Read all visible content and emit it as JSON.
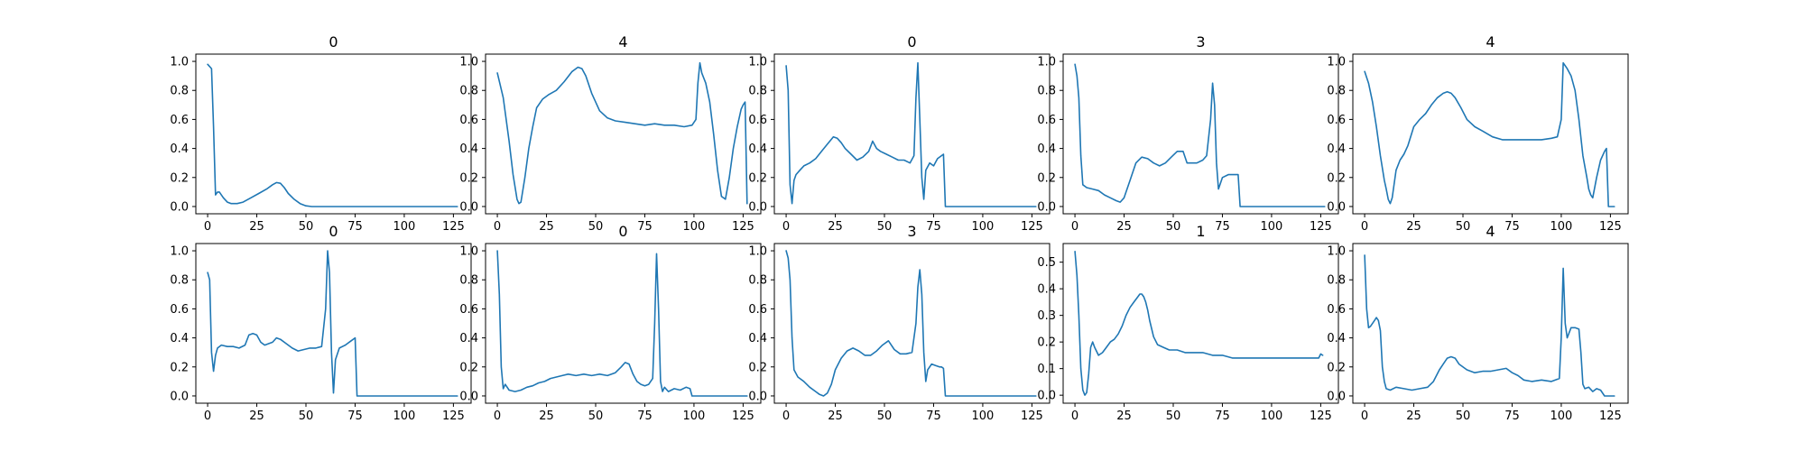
{
  "figure": {
    "line_color": "#1f77b4",
    "background": "#ffffff"
  },
  "chart_data": [
    {
      "type": "line",
      "title": "0",
      "xlim": [
        -6,
        134
      ],
      "ylim": [
        -0.05,
        1.05
      ],
      "xticks": [
        0,
        25,
        50,
        75,
        100,
        125
      ],
      "yticks": [
        0.0,
        0.2,
        0.4,
        0.6,
        0.8,
        1.0
      ],
      "ytick_labels": [
        "0.0",
        "0.2",
        "0.4",
        "0.6",
        "0.8",
        "1.0"
      ],
      "x": [
        0,
        2,
        3,
        4,
        5,
        6,
        8,
        10,
        12,
        15,
        18,
        22,
        26,
        30,
        33,
        35,
        37,
        39,
        41,
        44,
        47,
        50,
        53,
        127
      ],
      "y": [
        0.98,
        0.95,
        0.55,
        0.08,
        0.1,
        0.1,
        0.06,
        0.03,
        0.02,
        0.02,
        0.03,
        0.06,
        0.09,
        0.12,
        0.15,
        0.165,
        0.16,
        0.13,
        0.09,
        0.05,
        0.02,
        0.005,
        0.0,
        0.0
      ]
    },
    {
      "type": "line",
      "title": "4",
      "xlim": [
        -6,
        134
      ],
      "ylim": [
        -0.05,
        1.05
      ],
      "xticks": [
        0,
        25,
        50,
        75,
        100,
        125
      ],
      "yticks": [
        0.0,
        0.2,
        0.4,
        0.6,
        0.8,
        1.0
      ],
      "ytick_labels": [
        "0.0",
        "0.2",
        "0.4",
        "0.6",
        "0.8",
        "1.0"
      ],
      "x": [
        0,
        3,
        6,
        8,
        10,
        11,
        12,
        14,
        16,
        18,
        20,
        23,
        26,
        30,
        34,
        38,
        41,
        43,
        45,
        48,
        52,
        56,
        60,
        65,
        70,
        75,
        80,
        85,
        90,
        95,
        99,
        101,
        102,
        103,
        104,
        106,
        108,
        110,
        112,
        114,
        116,
        118,
        120,
        122,
        124,
        125,
        126,
        127
      ],
      "y": [
        0.92,
        0.75,
        0.45,
        0.22,
        0.05,
        0.02,
        0.03,
        0.2,
        0.4,
        0.55,
        0.68,
        0.74,
        0.77,
        0.8,
        0.86,
        0.93,
        0.96,
        0.95,
        0.9,
        0.78,
        0.66,
        0.61,
        0.59,
        0.58,
        0.57,
        0.56,
        0.57,
        0.56,
        0.56,
        0.55,
        0.56,
        0.6,
        0.85,
        0.99,
        0.92,
        0.85,
        0.72,
        0.5,
        0.25,
        0.07,
        0.05,
        0.2,
        0.4,
        0.55,
        0.67,
        0.7,
        0.72,
        0.02
      ]
    },
    {
      "type": "line",
      "title": "0",
      "xlim": [
        -6,
        134
      ],
      "ylim": [
        -0.05,
        1.05
      ],
      "xticks": [
        0,
        25,
        50,
        75,
        100,
        125
      ],
      "yticks": [
        0.0,
        0.2,
        0.4,
        0.6,
        0.8,
        1.0
      ],
      "ytick_labels": [
        "0.0",
        "0.2",
        "0.4",
        "0.6",
        "0.8",
        "1.0"
      ],
      "x": [
        0,
        1,
        2,
        3,
        4,
        5,
        7,
        9,
        12,
        15,
        18,
        21,
        24,
        26,
        28,
        30,
        33,
        36,
        39,
        42,
        44,
        46,
        48,
        51,
        54,
        57,
        60,
        63,
        65,
        66,
        67,
        68,
        69,
        70,
        71,
        73,
        75,
        77,
        79,
        80,
        81,
        127
      ],
      "y": [
        0.97,
        0.8,
        0.15,
        0.02,
        0.18,
        0.22,
        0.25,
        0.28,
        0.3,
        0.33,
        0.38,
        0.43,
        0.48,
        0.47,
        0.44,
        0.4,
        0.36,
        0.32,
        0.34,
        0.38,
        0.45,
        0.4,
        0.38,
        0.36,
        0.34,
        0.32,
        0.32,
        0.3,
        0.35,
        0.75,
        0.99,
        0.6,
        0.2,
        0.05,
        0.25,
        0.3,
        0.28,
        0.33,
        0.35,
        0.36,
        0.0,
        0.0
      ]
    },
    {
      "type": "line",
      "title": "3",
      "xlim": [
        -6,
        134
      ],
      "ylim": [
        -0.05,
        1.05
      ],
      "xticks": [
        0,
        25,
        50,
        75,
        100,
        125
      ],
      "yticks": [
        0.0,
        0.2,
        0.4,
        0.6,
        0.8,
        1.0
      ],
      "ytick_labels": [
        "0.0",
        "0.2",
        "0.4",
        "0.6",
        "0.8",
        "1.0"
      ],
      "x": [
        0,
        1,
        2,
        3,
        4,
        6,
        9,
        12,
        15,
        18,
        21,
        23,
        25,
        28,
        31,
        34,
        37,
        40,
        43,
        46,
        49,
        52,
        55,
        57,
        59,
        62,
        65,
        67,
        69,
        70,
        71,
        72,
        73,
        75,
        78,
        81,
        82,
        83,
        84,
        127
      ],
      "y": [
        0.98,
        0.9,
        0.75,
        0.35,
        0.15,
        0.13,
        0.12,
        0.11,
        0.08,
        0.06,
        0.04,
        0.03,
        0.06,
        0.18,
        0.3,
        0.34,
        0.33,
        0.3,
        0.28,
        0.3,
        0.34,
        0.38,
        0.38,
        0.3,
        0.3,
        0.3,
        0.32,
        0.35,
        0.6,
        0.85,
        0.7,
        0.3,
        0.12,
        0.2,
        0.22,
        0.22,
        0.22,
        0.22,
        0.0,
        0.0
      ]
    },
    {
      "type": "line",
      "title": "4",
      "xlim": [
        -6,
        134
      ],
      "ylim": [
        -0.05,
        1.05
      ],
      "xticks": [
        0,
        25,
        50,
        75,
        100,
        125
      ],
      "yticks": [
        0.0,
        0.2,
        0.4,
        0.6,
        0.8,
        1.0
      ],
      "ytick_labels": [
        "0.0",
        "0.2",
        "0.4",
        "0.6",
        "0.8",
        "1.0"
      ],
      "x": [
        0,
        2,
        4,
        6,
        8,
        10,
        11,
        12,
        13,
        14,
        16,
        18,
        20,
        22,
        25,
        28,
        31,
        34,
        37,
        40,
        42,
        44,
        46,
        49,
        52,
        56,
        60,
        65,
        70,
        75,
        80,
        85,
        90,
        95,
        98,
        100,
        101,
        103,
        105,
        107,
        109,
        111,
        113,
        114,
        115,
        116,
        118,
        120,
        122,
        123,
        124,
        127
      ],
      "y": [
        0.93,
        0.85,
        0.72,
        0.55,
        0.35,
        0.18,
        0.12,
        0.05,
        0.02,
        0.06,
        0.25,
        0.32,
        0.36,
        0.42,
        0.55,
        0.6,
        0.64,
        0.7,
        0.75,
        0.78,
        0.79,
        0.78,
        0.75,
        0.68,
        0.6,
        0.55,
        0.52,
        0.48,
        0.46,
        0.46,
        0.46,
        0.46,
        0.46,
        0.47,
        0.48,
        0.6,
        0.99,
        0.95,
        0.9,
        0.8,
        0.6,
        0.35,
        0.2,
        0.12,
        0.08,
        0.06,
        0.2,
        0.32,
        0.38,
        0.4,
        0.0,
        0.0
      ]
    },
    {
      "type": "line",
      "title": "0",
      "xlim": [
        -6,
        134
      ],
      "ylim": [
        -0.05,
        1.05
      ],
      "xticks": [
        0,
        25,
        50,
        75,
        100,
        125
      ],
      "yticks": [
        0.0,
        0.2,
        0.4,
        0.6,
        0.8,
        1.0
      ],
      "ytick_labels": [
        "0.0",
        "0.2",
        "0.4",
        "0.6",
        "0.8",
        "1.0"
      ],
      "x": [
        0,
        1,
        2,
        3,
        4,
        5,
        7,
        10,
        13,
        16,
        19,
        21,
        23,
        25,
        27,
        29,
        31,
        33,
        35,
        37,
        40,
        43,
        46,
        49,
        52,
        55,
        58,
        60,
        61,
        62,
        63,
        64,
        65,
        67,
        70,
        73,
        75,
        76,
        127
      ],
      "y": [
        0.85,
        0.8,
        0.3,
        0.17,
        0.28,
        0.33,
        0.35,
        0.34,
        0.34,
        0.33,
        0.35,
        0.42,
        0.43,
        0.42,
        0.37,
        0.35,
        0.36,
        0.37,
        0.4,
        0.39,
        0.36,
        0.33,
        0.31,
        0.32,
        0.33,
        0.33,
        0.34,
        0.6,
        1.0,
        0.85,
        0.3,
        0.02,
        0.25,
        0.33,
        0.35,
        0.38,
        0.4,
        0.0,
        0.0
      ]
    },
    {
      "type": "line",
      "title": "0",
      "xlim": [
        -6,
        134
      ],
      "ylim": [
        -0.05,
        1.05
      ],
      "xticks": [
        0,
        25,
        50,
        75,
        100,
        125
      ],
      "yticks": [
        0.0,
        0.2,
        0.4,
        0.6,
        0.8,
        1.0
      ],
      "ytick_labels": [
        "0.0",
        "0.2",
        "0.4",
        "0.6",
        "0.8",
        "1.0"
      ],
      "x": [
        0,
        1,
        2,
        3,
        4,
        6,
        9,
        12,
        15,
        18,
        21,
        24,
        27,
        30,
        33,
        36,
        40,
        44,
        48,
        52,
        56,
        60,
        63,
        65,
        67,
        69,
        71,
        73,
        75,
        77,
        79,
        80,
        81,
        82,
        83,
        84,
        85,
        87,
        90,
        93,
        96,
        98,
        99,
        127
      ],
      "y": [
        1.0,
        0.7,
        0.2,
        0.05,
        0.08,
        0.04,
        0.03,
        0.04,
        0.06,
        0.07,
        0.09,
        0.1,
        0.12,
        0.13,
        0.14,
        0.15,
        0.14,
        0.15,
        0.14,
        0.15,
        0.14,
        0.16,
        0.2,
        0.23,
        0.22,
        0.15,
        0.1,
        0.08,
        0.07,
        0.08,
        0.12,
        0.5,
        0.98,
        0.6,
        0.1,
        0.03,
        0.06,
        0.03,
        0.05,
        0.04,
        0.06,
        0.05,
        0.0,
        0.0
      ]
    },
    {
      "type": "line",
      "title": "3",
      "xlim": [
        -6,
        134
      ],
      "ylim": [
        -0.05,
        1.05
      ],
      "xticks": [
        0,
        25,
        50,
        75,
        100,
        125
      ],
      "yticks": [
        0.0,
        0.2,
        0.4,
        0.6,
        0.8,
        1.0
      ],
      "ytick_labels": [
        "0.0",
        "0.2",
        "0.4",
        "0.6",
        "0.8",
        "1.0"
      ],
      "x": [
        0,
        1,
        2,
        3,
        4,
        6,
        9,
        12,
        15,
        17,
        19,
        21,
        23,
        25,
        28,
        31,
        34,
        37,
        40,
        43,
        46,
        49,
        52,
        55,
        58,
        61,
        64,
        66,
        67,
        68,
        69,
        70,
        71,
        72,
        74,
        76,
        78,
        79,
        80,
        81,
        127
      ],
      "y": [
        1.0,
        0.95,
        0.8,
        0.4,
        0.18,
        0.13,
        0.1,
        0.06,
        0.03,
        0.01,
        0.0,
        0.02,
        0.08,
        0.18,
        0.26,
        0.31,
        0.33,
        0.31,
        0.28,
        0.28,
        0.31,
        0.35,
        0.38,
        0.32,
        0.29,
        0.29,
        0.3,
        0.5,
        0.75,
        0.87,
        0.7,
        0.3,
        0.1,
        0.18,
        0.22,
        0.21,
        0.2,
        0.2,
        0.19,
        0.0,
        0.0
      ]
    },
    {
      "type": "line",
      "title": "1",
      "xlim": [
        -6,
        134
      ],
      "ylim": [
        -0.03,
        0.57
      ],
      "xticks": [
        0,
        25,
        50,
        75,
        100,
        125
      ],
      "yticks": [
        0.0,
        0.1,
        0.2,
        0.3,
        0.4,
        0.5
      ],
      "ytick_labels": [
        "0.0",
        "0.1",
        "0.2",
        "0.3",
        "0.4",
        "0.5"
      ],
      "x": [
        0,
        1,
        2,
        3,
        4,
        5,
        6,
        7,
        8,
        9,
        10,
        12,
        14,
        16,
        18,
        20,
        22,
        24,
        26,
        28,
        30,
        32,
        33,
        34,
        35,
        36,
        37,
        38,
        40,
        42,
        45,
        48,
        52,
        56,
        60,
        65,
        70,
        75,
        80,
        85,
        90,
        95,
        100,
        105,
        110,
        115,
        120,
        124,
        125,
        126
      ],
      "y": [
        0.54,
        0.45,
        0.3,
        0.1,
        0.02,
        0.0,
        0.01,
        0.08,
        0.18,
        0.2,
        0.18,
        0.15,
        0.16,
        0.18,
        0.2,
        0.21,
        0.23,
        0.26,
        0.3,
        0.33,
        0.35,
        0.37,
        0.38,
        0.38,
        0.37,
        0.35,
        0.32,
        0.28,
        0.22,
        0.19,
        0.18,
        0.17,
        0.17,
        0.16,
        0.16,
        0.16,
        0.15,
        0.15,
        0.14,
        0.14,
        0.14,
        0.14,
        0.14,
        0.14,
        0.14,
        0.14,
        0.14,
        0.14,
        0.155,
        0.15
      ]
    },
    {
      "type": "line",
      "title": "4",
      "xlim": [
        -6,
        134
      ],
      "ylim": [
        -0.05,
        1.05
      ],
      "xticks": [
        0,
        25,
        50,
        75,
        100,
        125
      ],
      "yticks": [
        0.0,
        0.2,
        0.4,
        0.6,
        0.8,
        1.0
      ],
      "ytick_labels": [
        "0.0",
        "0.2",
        "0.4",
        "0.6",
        "0.8",
        "1.0"
      ],
      "x": [
        0,
        1,
        2,
        3,
        5,
        6,
        7,
        8,
        9,
        10,
        11,
        13,
        16,
        20,
        24,
        28,
        32,
        35,
        38,
        40,
        42,
        44,
        46,
        48,
        52,
        56,
        60,
        64,
        68,
        72,
        75,
        78,
        81,
        85,
        90,
        95,
        99,
        100,
        101,
        102,
        103,
        105,
        107,
        109,
        110,
        111,
        112,
        114,
        116,
        118,
        120,
        122,
        124,
        126,
        127
      ],
      "y": [
        0.97,
        0.6,
        0.47,
        0.48,
        0.52,
        0.54,
        0.52,
        0.45,
        0.2,
        0.1,
        0.05,
        0.04,
        0.06,
        0.05,
        0.04,
        0.05,
        0.06,
        0.1,
        0.18,
        0.22,
        0.26,
        0.27,
        0.26,
        0.22,
        0.18,
        0.16,
        0.17,
        0.17,
        0.18,
        0.19,
        0.16,
        0.14,
        0.11,
        0.1,
        0.11,
        0.1,
        0.12,
        0.4,
        0.88,
        0.5,
        0.4,
        0.47,
        0.47,
        0.46,
        0.3,
        0.08,
        0.05,
        0.06,
        0.03,
        0.05,
        0.04,
        0.0,
        0.0,
        0.0,
        0.0
      ]
    }
  ]
}
